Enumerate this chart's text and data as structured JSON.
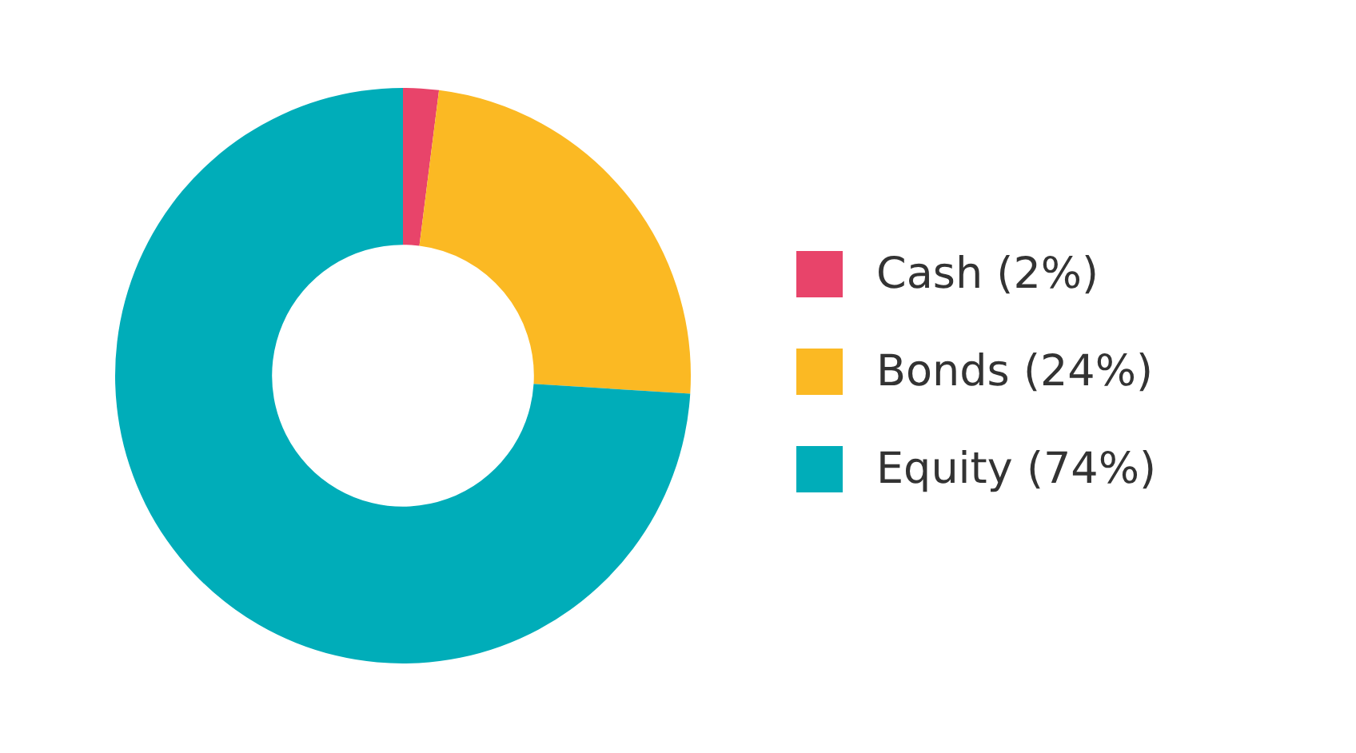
{
  "chart_data": {
    "type": "donut",
    "categories": [
      "Cash (2%)",
      "Bonds (24%)",
      "Equity (74%)"
    ],
    "values": [
      2,
      24,
      74
    ],
    "colors": [
      "#e8446a",
      "#fbb923",
      "#00adb9"
    ],
    "legend": "right"
  }
}
